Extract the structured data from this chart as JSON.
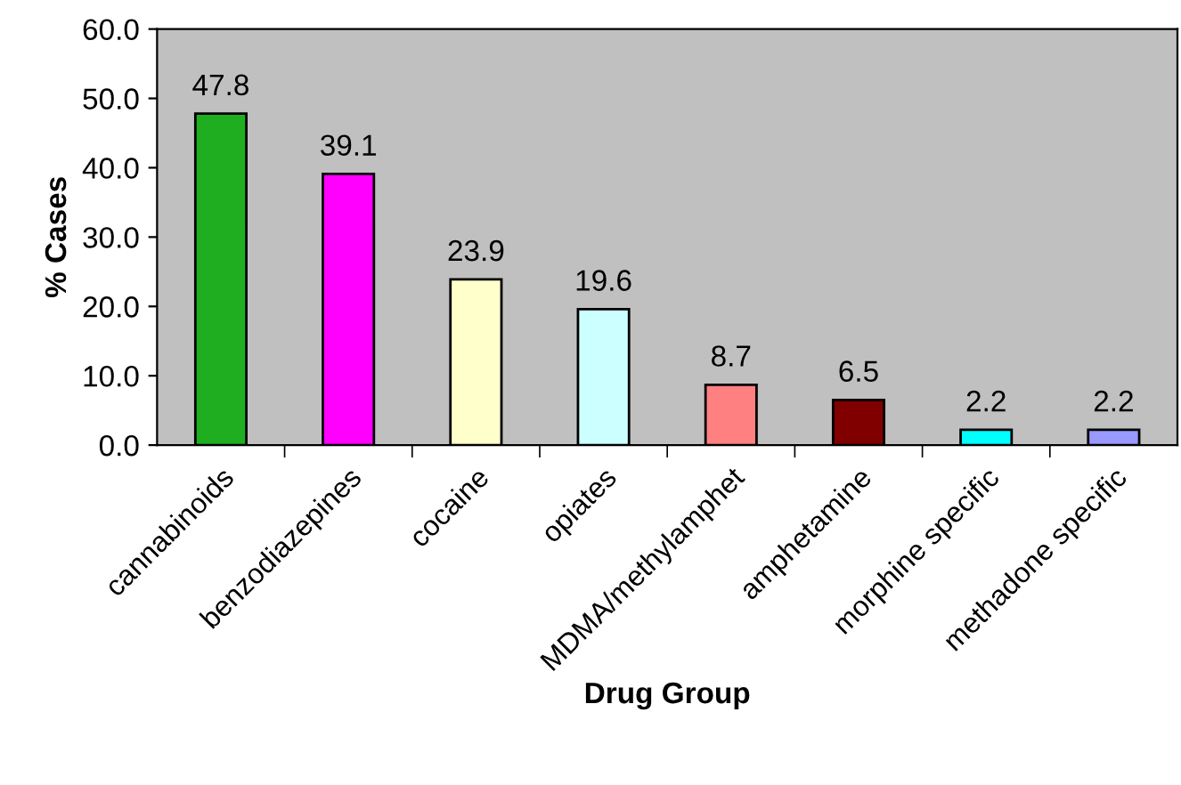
{
  "chart_data": {
    "type": "bar",
    "xlabel": "Drug Group",
    "ylabel": "% Cases",
    "categories": [
      "cannabinoids",
      "benzodiazepines",
      "cocaine",
      "opiates",
      "MDMA/methylamphet",
      "amphetamine",
      "morphine specific",
      "methadone specific"
    ],
    "values": [
      47.8,
      39.1,
      23.9,
      19.6,
      8.7,
      6.5,
      2.2,
      2.2
    ],
    "colors": [
      "#1fae1f",
      "#ff00ff",
      "#ffffcc",
      "#ccffff",
      "#ff8080",
      "#800000",
      "#00ffff",
      "#9999ff"
    ],
    "ylim": [
      0,
      60
    ],
    "yticks": [
      {
        "value": 0,
        "label": "0.0"
      },
      {
        "value": 10,
        "label": "10.0"
      },
      {
        "value": 20,
        "label": "20.0"
      },
      {
        "value": 30,
        "label": "30.0"
      },
      {
        "value": 40,
        "label": "40.0"
      },
      {
        "value": 50,
        "label": "50.0"
      },
      {
        "value": 60,
        "label": "60.0"
      }
    ],
    "data_labels": true,
    "grid": false,
    "legend": false
  }
}
